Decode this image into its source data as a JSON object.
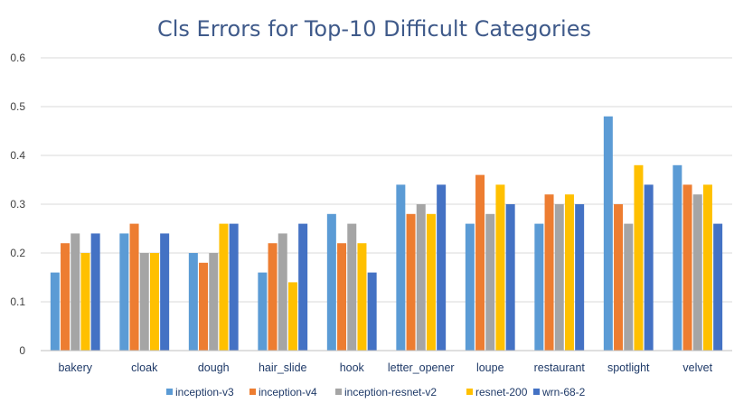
{
  "chart_data": {
    "type": "bar",
    "title": "Cls Errors for Top-10 Difficult Categories",
    "xlabel": "",
    "ylabel": "",
    "ylim": [
      0,
      0.6
    ],
    "yticks": [
      "0",
      "0.1",
      "0.2",
      "0.3",
      "0.4",
      "0.5",
      "0.6"
    ],
    "grid": true,
    "legend_position": "bottom",
    "categories": [
      "bakery",
      "cloak",
      "dough",
      "hair_slide",
      "hook",
      "letter_opener",
      "loupe",
      "restaurant",
      "spotlight",
      "velvet"
    ],
    "series": [
      {
        "name": "inception-v3",
        "color": "#5b9bd5",
        "values": [
          0.16,
          0.24,
          0.2,
          0.16,
          0.28,
          0.34,
          0.26,
          0.26,
          0.48,
          0.38
        ]
      },
      {
        "name": "inception-v4",
        "color": "#ed7d31",
        "values": [
          0.22,
          0.26,
          0.18,
          0.22,
          0.22,
          0.28,
          0.36,
          0.32,
          0.3,
          0.34
        ]
      },
      {
        "name": "inception-resnet-v2",
        "color": "#a5a5a5",
        "values": [
          0.24,
          0.2,
          0.2,
          0.24,
          0.26,
          0.3,
          0.28,
          0.3,
          0.26,
          0.32
        ]
      },
      {
        "name": "resnet-200",
        "color": "#ffc000",
        "values": [
          0.2,
          0.2,
          0.26,
          0.14,
          0.22,
          0.28,
          0.34,
          0.32,
          0.38,
          0.34
        ]
      },
      {
        "name": "wrn-68-2",
        "color": "#4472c4",
        "values": [
          0.24,
          0.24,
          0.26,
          0.26,
          0.16,
          0.34,
          0.3,
          0.3,
          0.34,
          0.26
        ]
      }
    ]
  }
}
